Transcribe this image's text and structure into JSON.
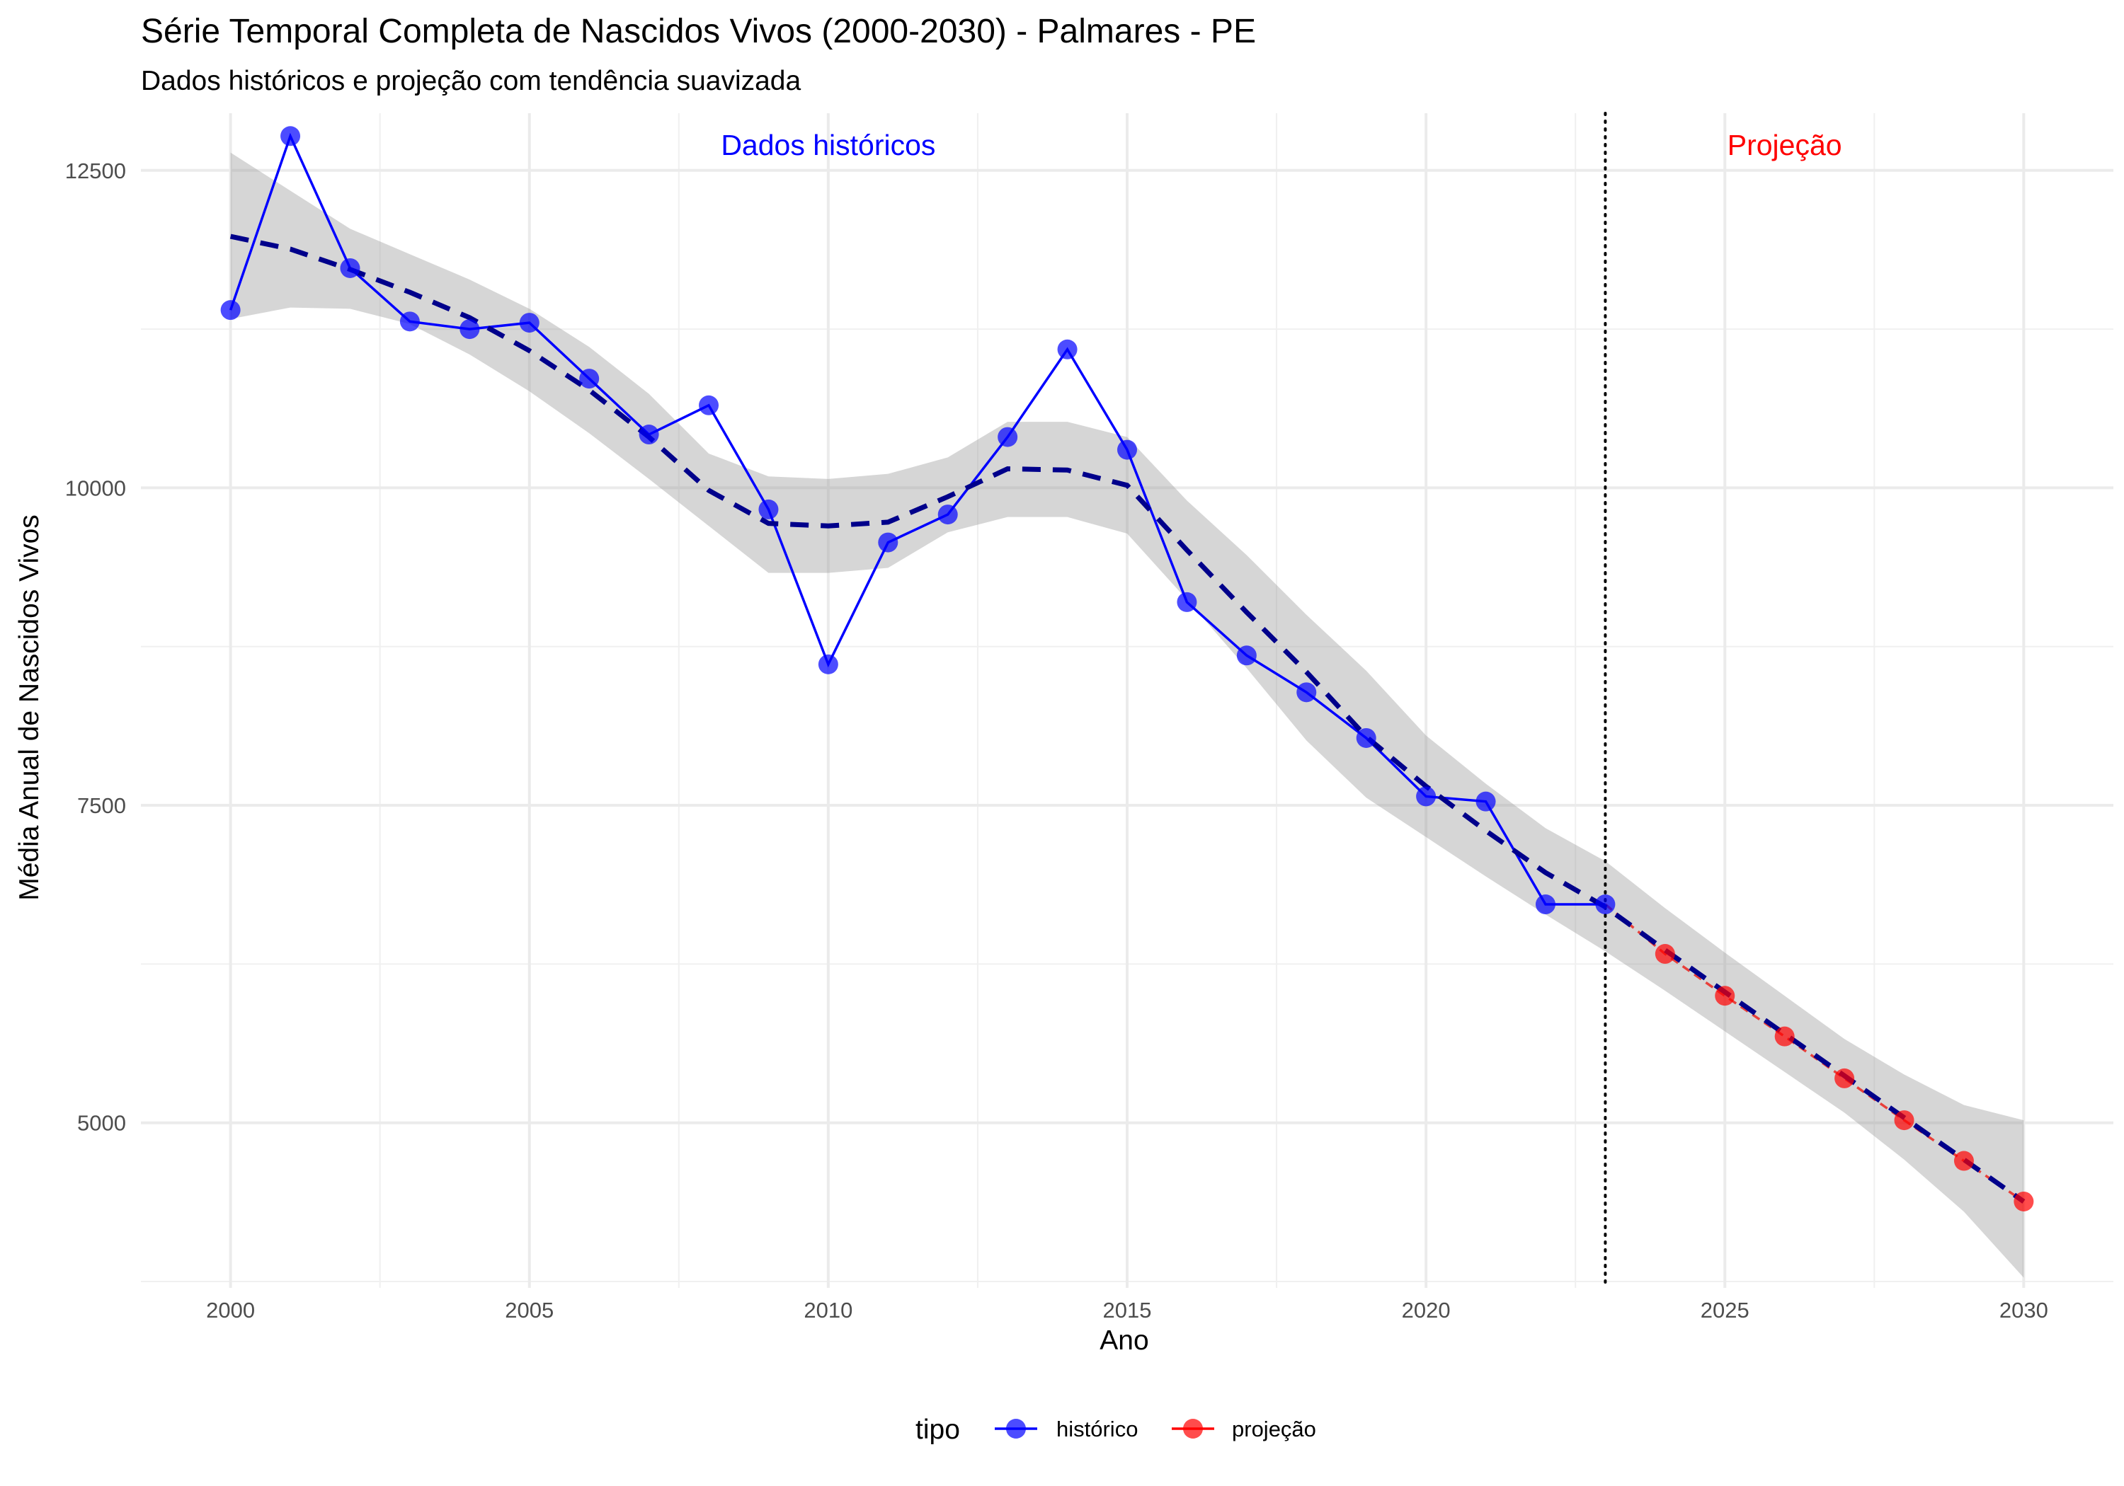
{
  "chart_data": {
    "type": "line",
    "title": "Série Temporal Completa de Nascidos Vivos (2000-2030) -  Palmares - PE",
    "subtitle": "Dados históricos e projeção com tendência suavizada",
    "xlabel": "Ano",
    "ylabel": "Média Anual de Nascidos Vivos",
    "xlim": [
      1998.5,
      2031.5
    ],
    "ylim": [
      3700,
      12950
    ],
    "x_ticks": [
      2000,
      2005,
      2010,
      2015,
      2020,
      2025,
      2030
    ],
    "y_ticks": [
      5000,
      7500,
      10000,
      12500
    ],
    "grid": true,
    "legend": {
      "title": "tipo",
      "position": "bottom",
      "entries": [
        {
          "label": "histórico",
          "color": "#0000ff"
        },
        {
          "label": "projeção",
          "color": "#ff0000"
        }
      ]
    },
    "series": [
      {
        "name": "histórico",
        "color": "#0000ff",
        "x": [
          2000,
          2001,
          2002,
          2003,
          2004,
          2005,
          2006,
          2007,
          2008,
          2009,
          2010,
          2011,
          2012,
          2013,
          2014,
          2015,
          2016,
          2017,
          2018,
          2019,
          2020,
          2021,
          2022,
          2023
        ],
        "values": [
          11400,
          12770,
          11730,
          11310,
          11250,
          11300,
          10860,
          10420,
          10650,
          9830,
          8610,
          9570,
          9790,
          10400,
          11090,
          10300,
          9100,
          8680,
          8390,
          8030,
          7570,
          7530,
          6720,
          6720
        ]
      },
      {
        "name": "projeção",
        "color": "#ff0000",
        "x": [
          2023,
          2024,
          2025,
          2026,
          2027,
          2028,
          2029,
          2030
        ],
        "values": [
          6720,
          6330,
          6000,
          5680,
          5350,
          5020,
          4700,
          4380
        ]
      }
    ],
    "trend": {
      "color": "#00008b",
      "x": [
        2000,
        2001,
        2002,
        2003,
        2004,
        2005,
        2006,
        2007,
        2008,
        2009,
        2010,
        2011,
        2012,
        2013,
        2014,
        2015,
        2016,
        2017,
        2018,
        2019,
        2020,
        2021,
        2022,
        2023,
        2024,
        2025,
        2026,
        2027,
        2028,
        2029,
        2030
      ],
      "values": [
        11980,
        11880,
        11720,
        11540,
        11340,
        11080,
        10770,
        10400,
        9980,
        9720,
        9700,
        9730,
        9930,
        10150,
        10140,
        10020,
        9510,
        9020,
        8550,
        8040,
        7650,
        7300,
        6970,
        6700,
        6360,
        6030,
        5700,
        5370,
        5040,
        4710,
        4380
      ],
      "ci_low": [
        11330,
        11420,
        11410,
        11290,
        11050,
        10760,
        10430,
        10070,
        9700,
        9330,
        9330,
        9370,
        9650,
        9770,
        9770,
        9640,
        9120,
        8580,
        8010,
        7560,
        7250,
        6940,
        6640,
        6350,
        6040,
        5720,
        5400,
        5080,
        4710,
        4300,
        3780
      ],
      "ci_high": [
        12640,
        12340,
        12040,
        11840,
        11640,
        11410,
        11110,
        10740,
        10270,
        10090,
        10070,
        10110,
        10240,
        10520,
        10520,
        10400,
        9900,
        9470,
        9000,
        8560,
        8050,
        7670,
        7320,
        7060,
        6690,
        6340,
        6000,
        5660,
        5380,
        5140,
        5020
      ]
    },
    "vline": {
      "x": 2023,
      "style": "dotted",
      "color": "#000000"
    },
    "annotations": [
      {
        "text": "Dados históricos",
        "x": 2010,
        "y": 12700,
        "color": "#0000ff"
      },
      {
        "text": "Projeção",
        "x": 2026,
        "y": 12700,
        "color": "#ff0000"
      }
    ]
  }
}
